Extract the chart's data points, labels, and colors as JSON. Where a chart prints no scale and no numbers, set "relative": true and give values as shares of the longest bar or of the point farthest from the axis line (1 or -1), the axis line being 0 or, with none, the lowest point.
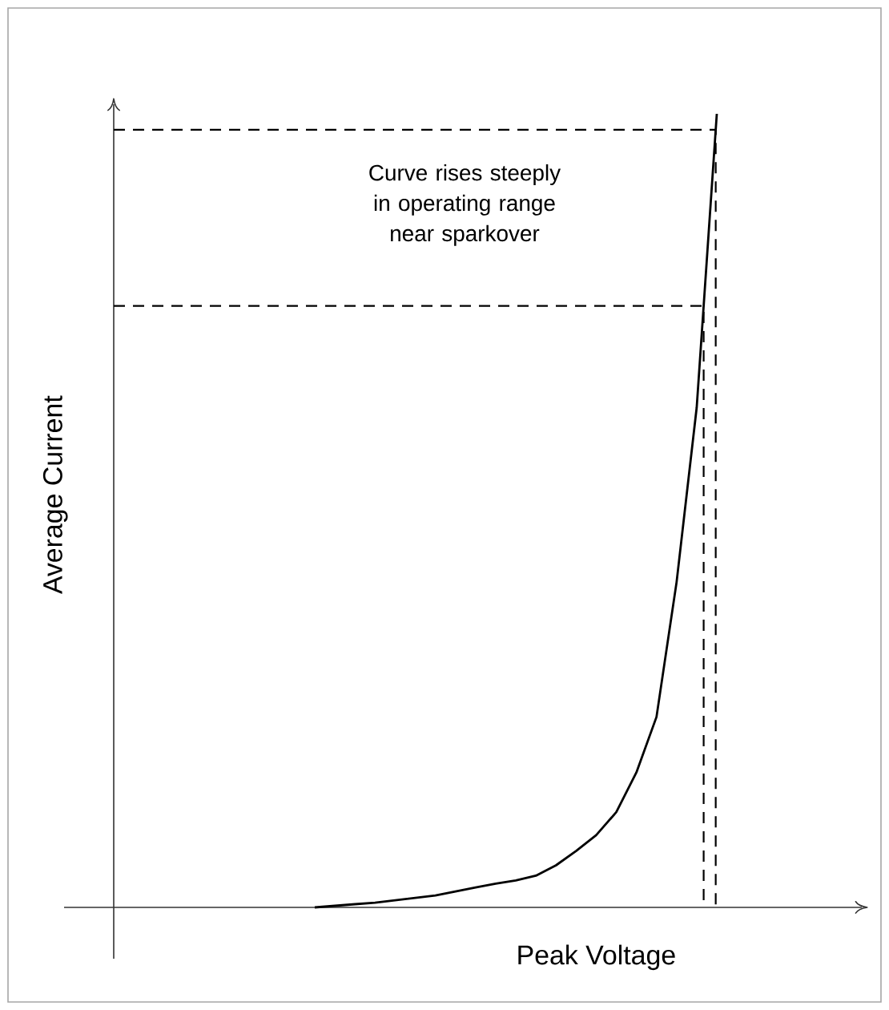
{
  "chart_data": {
    "type": "line",
    "relative": true,
    "xlabel": "Peak Voltage",
    "ylabel": "Average Current",
    "annotations": [
      "Curve rises steeply in operating range near sparkover"
    ],
    "categories": [
      null,
      null,
      null,
      null,
      null,
      null,
      null,
      null,
      null,
      null,
      null,
      null,
      null,
      null,
      null,
      null,
      null,
      null,
      null,
      null,
      null,
      null,
      null,
      null,
      null,
      null,
      null,
      null,
      null,
      null,
      null,
      null,
      null,
      null,
      null,
      null,
      null,
      null
    ],
    "series": [
      {
        "color": "#000000",
        "values": [
          null,
          null,
          null,
          null,
          null,
          null,
          null,
          null,
          null,
          null,
          0,
          0.002,
          0.004,
          0.006,
          0.009,
          0.012,
          0.015,
          0.02,
          0.025,
          0.03,
          0.034,
          0.04,
          0.053,
          0.071,
          0.091,
          0.12,
          0.17,
          0.24,
          0.41,
          0.63,
          1,
          null,
          null,
          null,
          null,
          null,
          null,
          null
        ]
      }
    ],
    "ref_lines": [
      {
        "axis": "y",
        "value": 0.98,
        "line_style": "dashed",
        "color": "#000000"
      },
      {
        "axis": "y",
        "value": 0.758,
        "line_style": "dashed",
        "color": "#000000"
      }
    ],
    "line_style": "solid",
    "marker": "none"
  }
}
